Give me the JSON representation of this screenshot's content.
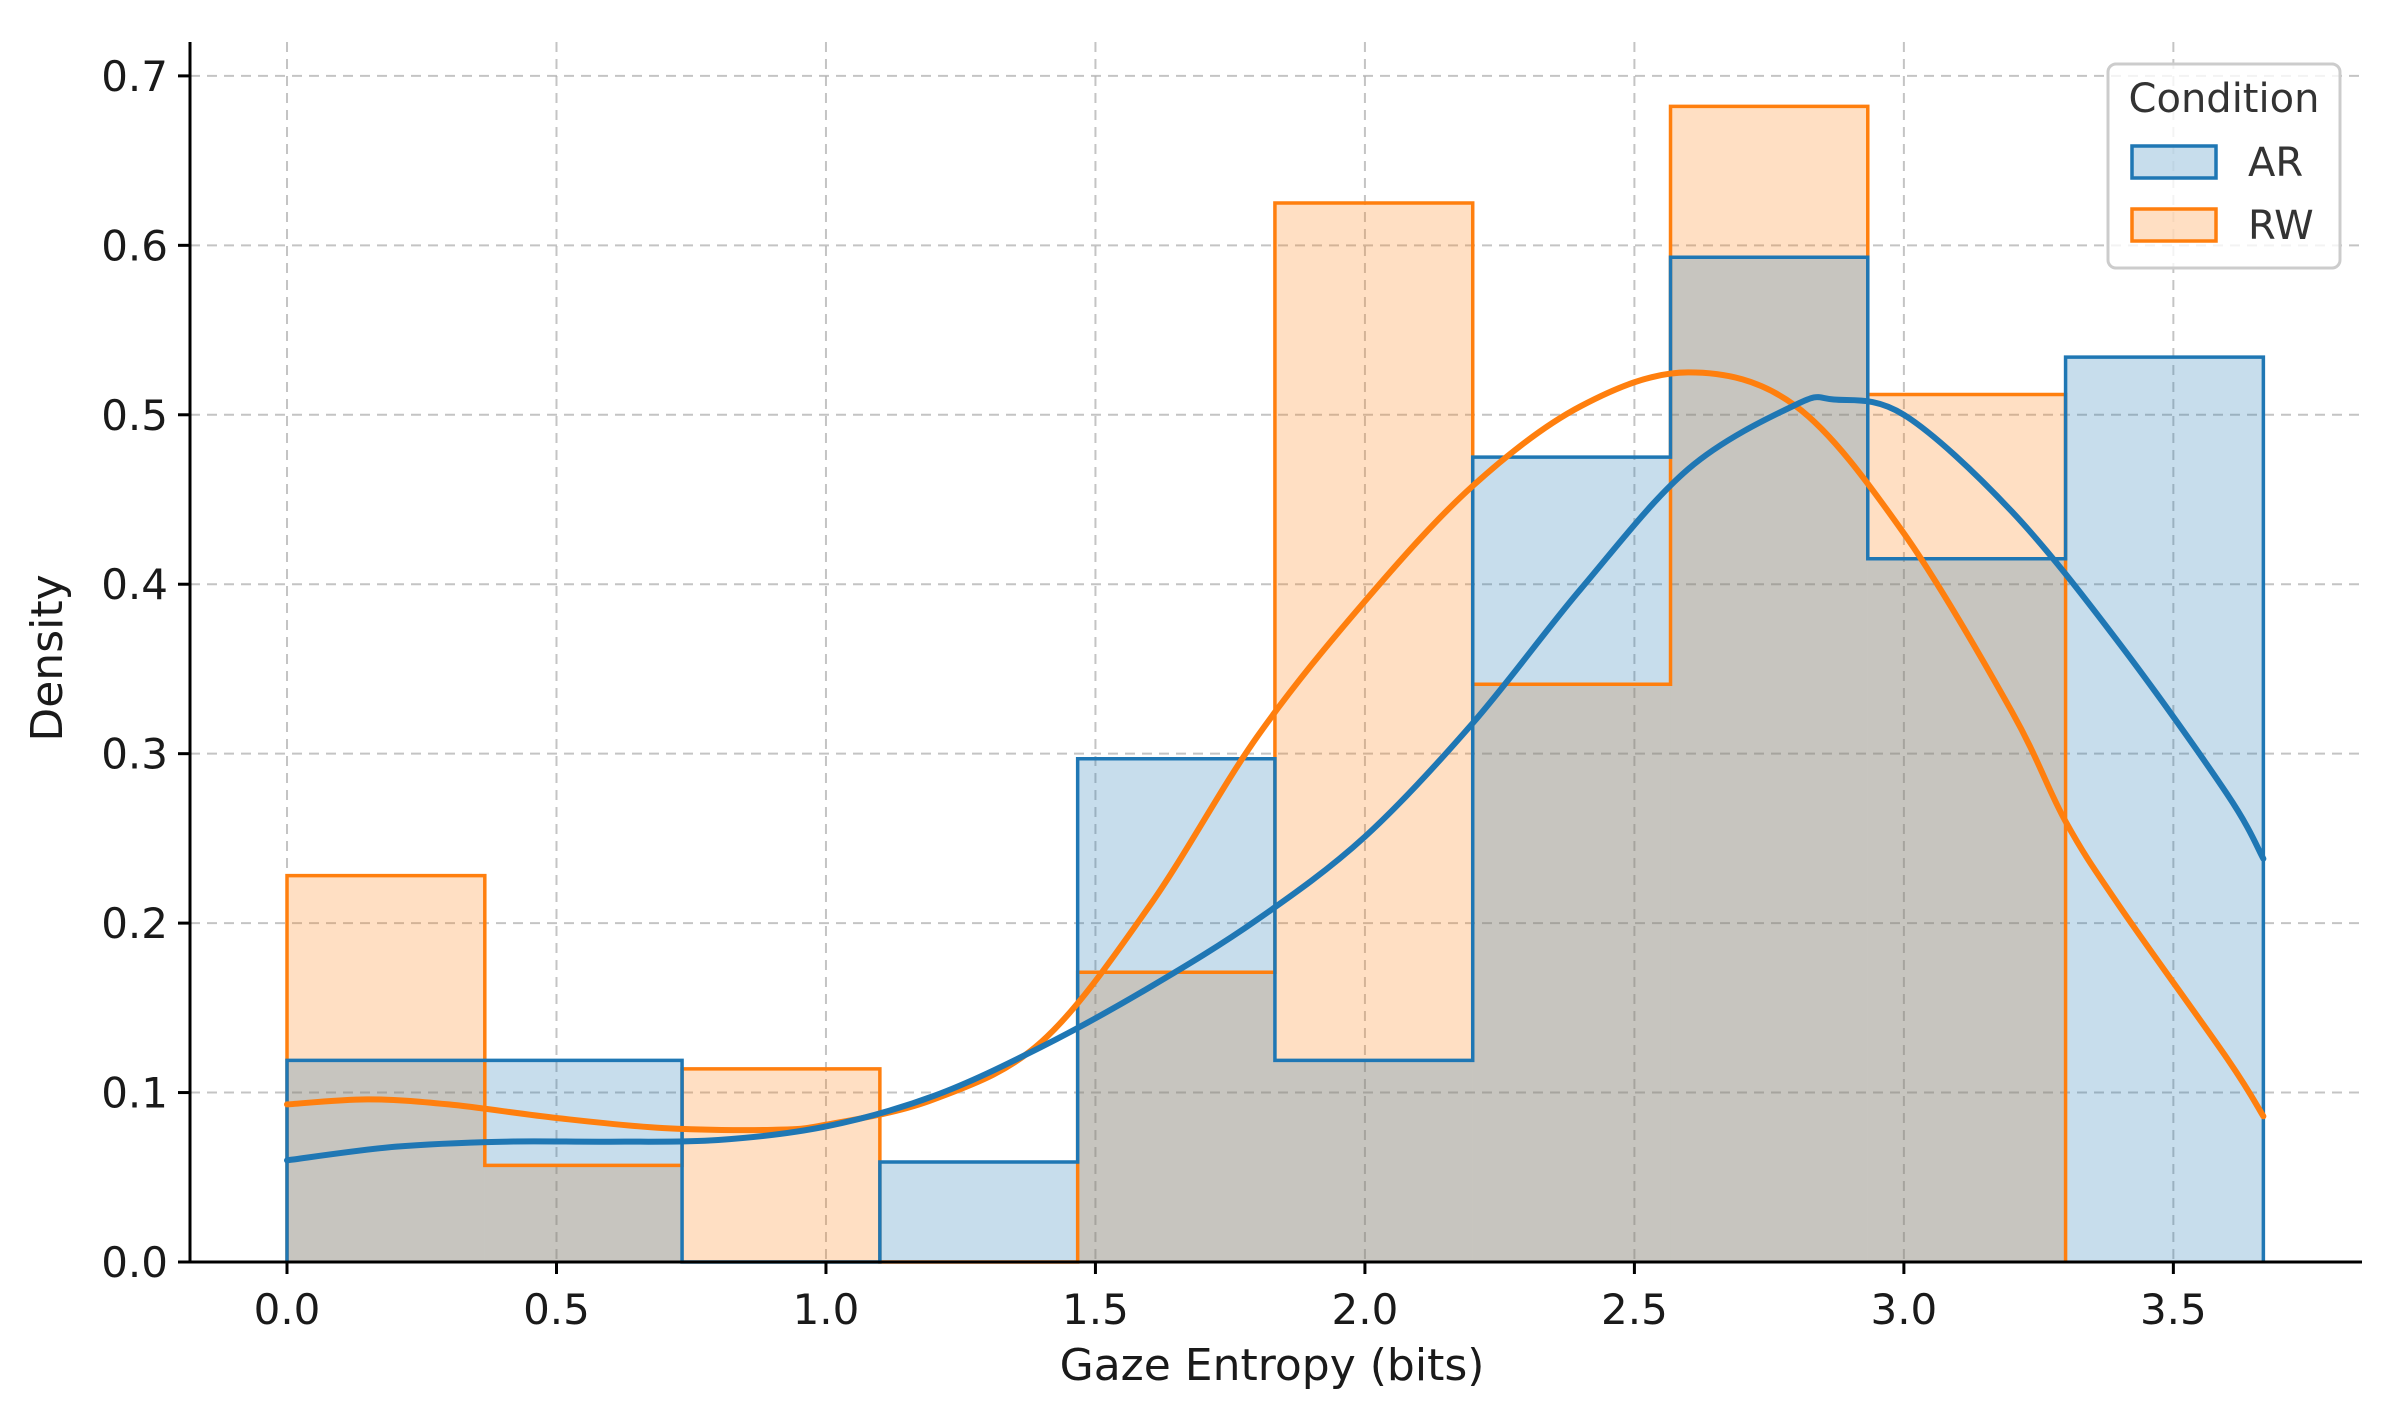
{
  "colors": {
    "ar": "#1f77b4",
    "rw": "#ff7f0e",
    "grid": "#b0b0b0",
    "axis": "#000000"
  },
  "chart_data": {
    "type": "histogram",
    "title": "",
    "xlabel": "Gaze Entropy (bits)",
    "ylabel": "Density",
    "xlim": [
      -0.18,
      3.85
    ],
    "ylim": [
      0,
      0.72
    ],
    "xticks": [
      0.0,
      0.5,
      1.0,
      1.5,
      2.0,
      2.5,
      3.0,
      3.5
    ],
    "xtick_labels": [
      "0.0",
      "0.5",
      "1.0",
      "1.5",
      "2.0",
      "2.5",
      "3.0",
      "3.5"
    ],
    "yticks": [
      0.0,
      0.1,
      0.2,
      0.3,
      0.4,
      0.5,
      0.6,
      0.7
    ],
    "ytick_labels": [
      "0.0",
      "0.1",
      "0.2",
      "0.3",
      "0.4",
      "0.5",
      "0.6",
      "0.7"
    ],
    "grid": true,
    "legend": {
      "title": "Condition",
      "position": "top-right"
    },
    "series": [
      {
        "name": "AR",
        "bins": [
          [
            0.0,
            0.733,
            0.119
          ],
          [
            0.733,
            1.1,
            0.0
          ],
          [
            1.1,
            1.467,
            0.059
          ],
          [
            1.467,
            1.833,
            0.297
          ],
          [
            1.833,
            2.2,
            0.119
          ],
          [
            2.2,
            2.567,
            0.475
          ],
          [
            2.567,
            2.933,
            0.593
          ],
          [
            2.933,
            3.3,
            0.415
          ],
          [
            3.3,
            3.667,
            0.534
          ]
        ],
        "kde": [
          [
            0.0,
            0.06
          ],
          [
            0.2,
            0.068
          ],
          [
            0.4,
            0.071
          ],
          [
            0.6,
            0.071
          ],
          [
            0.8,
            0.072
          ],
          [
            1.0,
            0.08
          ],
          [
            1.2,
            0.098
          ],
          [
            1.4,
            0.127
          ],
          [
            1.6,
            0.162
          ],
          [
            1.8,
            0.202
          ],
          [
            2.0,
            0.251
          ],
          [
            2.2,
            0.318
          ],
          [
            2.4,
            0.397
          ],
          [
            2.6,
            0.468
          ],
          [
            2.8,
            0.506
          ],
          [
            2.87,
            0.509
          ],
          [
            3.0,
            0.5
          ],
          [
            3.2,
            0.443
          ],
          [
            3.4,
            0.365
          ],
          [
            3.6,
            0.276
          ],
          [
            3.667,
            0.238
          ]
        ]
      },
      {
        "name": "RW",
        "bins": [
          [
            0.0,
            0.367,
            0.228
          ],
          [
            0.367,
            0.733,
            0.057
          ],
          [
            0.733,
            1.1,
            0.114
          ],
          [
            1.1,
            1.467,
            0.0
          ],
          [
            1.467,
            1.833,
            0.171
          ],
          [
            1.833,
            2.2,
            0.625
          ],
          [
            2.2,
            2.567,
            0.341
          ],
          [
            2.567,
            2.933,
            0.682
          ],
          [
            2.933,
            3.3,
            0.512
          ]
        ],
        "kde": [
          [
            0.0,
            0.093
          ],
          [
            0.15,
            0.096
          ],
          [
            0.3,
            0.093
          ],
          [
            0.5,
            0.085
          ],
          [
            0.7,
            0.079
          ],
          [
            0.9,
            0.078
          ],
          [
            1.0,
            0.081
          ],
          [
            1.2,
            0.096
          ],
          [
            1.4,
            0.13
          ],
          [
            1.6,
            0.21
          ],
          [
            1.8,
            0.31
          ],
          [
            2.0,
            0.39
          ],
          [
            2.2,
            0.458
          ],
          [
            2.4,
            0.505
          ],
          [
            2.6,
            0.525
          ],
          [
            2.8,
            0.505
          ],
          [
            3.0,
            0.43
          ],
          [
            3.2,
            0.325
          ],
          [
            3.3,
            0.26
          ],
          [
            3.4,
            0.21
          ],
          [
            3.6,
            0.12
          ],
          [
            3.667,
            0.086
          ]
        ]
      }
    ]
  }
}
